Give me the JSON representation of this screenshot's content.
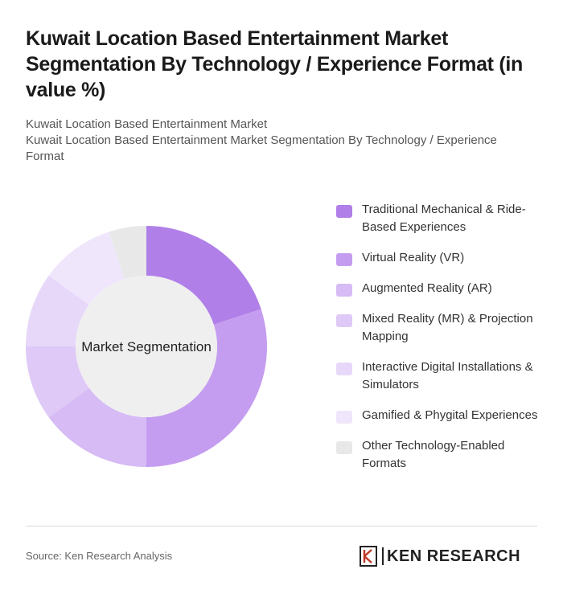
{
  "header": {
    "title": "Kuwait Location Based Entertainment Market Segmentation By Technology / Experience Format (in value %)",
    "subtitle_line1": "Kuwait Location Based Entertainment Market",
    "subtitle_line2": "Kuwait Location Based Entertainment Market Segmentation By Technology / Experience Format"
  },
  "chart_data": {
    "type": "pie",
    "center_label": "Market Segmentation",
    "categories": [
      "Traditional Mechanical & Ride-Based Experiences",
      "Virtual Reality (VR)",
      "Augmented Reality (AR)",
      "Mixed Reality (MR) & Projection Mapping",
      "Interactive Digital Installations & Simulators",
      "Gamified & Phygital Experiences",
      "Other Technology-Enabled Formats"
    ],
    "values": [
      20,
      30,
      15,
      10,
      10,
      10,
      5
    ],
    "colors": [
      "#b07fe8",
      "#c59df0",
      "#d6bbf5",
      "#dfc9f7",
      "#e7d8f9",
      "#efe6fb",
      "#e8e8e8"
    ],
    "legend_position": "right"
  },
  "footer": {
    "source": "Source: Ken Research Analysis",
    "logo_text": "KEN RESEARCH"
  }
}
